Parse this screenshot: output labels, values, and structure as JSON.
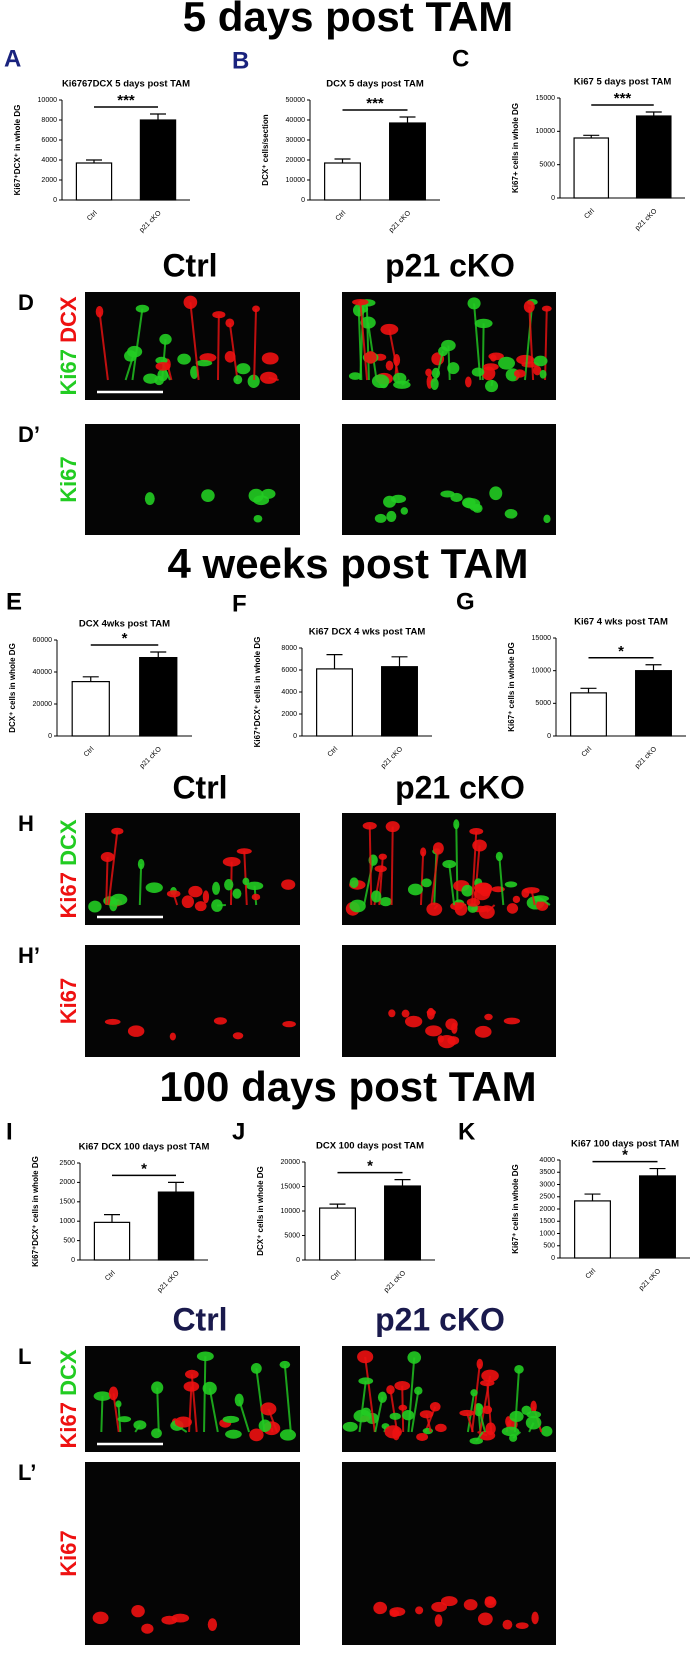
{
  "sections": [
    "5 days post TAM",
    "4 weeks post TAM",
    "100 days post TAM"
  ],
  "image_groups": [
    {
      "headers": [
        "Ctrl",
        "p21 cKO"
      ],
      "header_color": "#000000",
      "rows": [
        {
          "panel": "D",
          "stains": [
            "Ki67",
            "DCX"
          ],
          "stain_colors": [
            "#22cc22",
            "#ee1111"
          ]
        },
        {
          "panel": "D’",
          "stains": [
            "Ki67"
          ],
          "stain_colors": [
            "#22cc22"
          ]
        }
      ]
    },
    {
      "headers": [
        "Ctrl",
        "p21 cKO"
      ],
      "header_color": "#000000",
      "rows": [
        {
          "panel": "H",
          "stains": [
            "Ki67",
            "DCX"
          ],
          "stain_colors": [
            "#ee1111",
            "#22cc22"
          ]
        },
        {
          "panel": "H’",
          "stains": [
            "Ki67"
          ],
          "stain_colors": [
            "#ee1111"
          ]
        }
      ]
    },
    {
      "headers": [
        "Ctrl",
        "p21 cKO"
      ],
      "header_color": "#1a1a4d",
      "rows": [
        {
          "panel": "L",
          "stains": [
            "Ki67",
            "DCX"
          ],
          "stain_colors": [
            "#ee1111",
            "#22cc22"
          ]
        },
        {
          "panel": "L’",
          "stains": [
            "Ki67"
          ],
          "stain_colors": [
            "#ee1111"
          ]
        }
      ]
    }
  ],
  "chart_data": [
    {
      "type": "bar",
      "panel": "A",
      "title": "Ki6767DCX 5 days post TAM",
      "y_label": "Ki67⁺DCX⁺ in whole DG",
      "categories": [
        "Ctrl",
        "p21 cKO"
      ],
      "values": [
        3700,
        8000
      ],
      "errors": [
        300,
        600
      ],
      "colors": [
        "#ffffff",
        "#000000"
      ],
      "significance": "***",
      "ylim": [
        0,
        10000
      ],
      "yticks": [
        0,
        2000,
        4000,
        6000,
        8000,
        10000
      ]
    },
    {
      "type": "bar",
      "panel": "B",
      "title": "DCX 5 days post TAM",
      "y_label": "DCX⁺ cells/section",
      "categories": [
        "Ctrl",
        "p21 cKO"
      ],
      "values": [
        18500,
        38500
      ],
      "errors": [
        2000,
        3000
      ],
      "colors": [
        "#ffffff",
        "#000000"
      ],
      "significance": "***",
      "ylim": [
        0,
        50000
      ],
      "yticks": [
        0,
        10000,
        20000,
        30000,
        40000,
        50000
      ]
    },
    {
      "type": "bar",
      "panel": "C",
      "title": "Ki67 5 days post TAM",
      "y_label": "Ki67+ cells in whole DG",
      "categories": [
        "Ctrl",
        "p21 cKO"
      ],
      "values": [
        9000,
        12300
      ],
      "errors": [
        400,
        600
      ],
      "colors": [
        "#ffffff",
        "#000000"
      ],
      "significance": "***",
      "ylim": [
        0,
        15000
      ],
      "yticks": [
        0,
        5000,
        10000,
        15000
      ]
    },
    {
      "type": "bar",
      "panel": "E",
      "title": "DCX 4wks post TAM",
      "y_label": "DCX⁺ cells in whole DG",
      "categories": [
        "Ctrl",
        "p21 cKO"
      ],
      "values": [
        34000,
        49000
      ],
      "errors": [
        3000,
        3500
      ],
      "colors": [
        "#ffffff",
        "#000000"
      ],
      "significance": "*",
      "ylim": [
        0,
        60000
      ],
      "yticks": [
        0,
        20000,
        40000,
        60000
      ]
    },
    {
      "type": "bar",
      "panel": "F",
      "title": "Ki67 DCX 4 wks post TAM",
      "y_label": "Ki67⁺DCX⁺ cells in whole DG",
      "categories": [
        "Ctrl",
        "p21 cKO"
      ],
      "values": [
        6100,
        6300
      ],
      "errors": [
        1300,
        900
      ],
      "colors": [
        "#ffffff",
        "#000000"
      ],
      "ylim": [
        0,
        8000
      ],
      "yticks": [
        0,
        2000,
        4000,
        6000,
        8000
      ]
    },
    {
      "type": "bar",
      "panel": "G",
      "title": "Ki67 4 wks post TAM",
      "y_label": "Ki67⁺ cells in whole DG",
      "categories": [
        "Ctrl",
        "p21 cKO"
      ],
      "values": [
        6600,
        10000
      ],
      "errors": [
        700,
        900
      ],
      "colors": [
        "#ffffff",
        "#000000"
      ],
      "significance": "*",
      "ylim": [
        0,
        15000
      ],
      "yticks": [
        0,
        5000,
        10000,
        15000
      ]
    },
    {
      "type": "bar",
      "panel": "I",
      "title": "Ki67 DCX 100 days post TAM",
      "y_label": "Ki67⁺DCX⁺ cells in whole DG",
      "categories": [
        "Ctrl",
        "p21 cKO"
      ],
      "values": [
        970,
        1750
      ],
      "errors": [
        200,
        250
      ],
      "colors": [
        "#ffffff",
        "#000000"
      ],
      "significance": "*",
      "ylim": [
        0,
        2500
      ],
      "yticks": [
        0,
        500,
        1000,
        1500,
        2000,
        2500
      ]
    },
    {
      "type": "bar",
      "panel": "J",
      "title": "DCX 100 days post TAM",
      "y_label": "DCX⁺ cells in whole DG",
      "categories": [
        "Ctrl",
        "p21 cKO"
      ],
      "values": [
        10600,
        15100
      ],
      "errors": [
        800,
        1300
      ],
      "colors": [
        "#ffffff",
        "#000000"
      ],
      "significance": "*",
      "ylim": [
        0,
        20000
      ],
      "yticks": [
        0,
        5000,
        10000,
        15000,
        20000
      ]
    },
    {
      "type": "bar",
      "panel": "K",
      "title": "Ki67 100 days post TAM",
      "y_label": "Ki67⁺ cells in whole DG",
      "categories": [
        "Ctrl",
        "p21 cKO"
      ],
      "values": [
        2330,
        3350
      ],
      "errors": [
        280,
        300
      ],
      "colors": [
        "#ffffff",
        "#000000"
      ],
      "significance": "*",
      "ylim": [
        0,
        4000
      ],
      "yticks": [
        0,
        500,
        1000,
        1500,
        2000,
        2500,
        3000,
        3500,
        4000
      ]
    }
  ]
}
